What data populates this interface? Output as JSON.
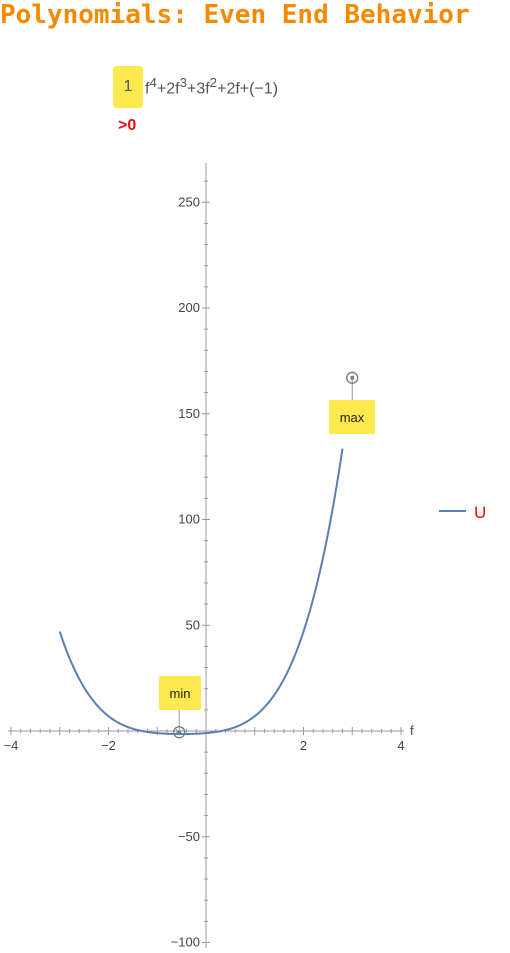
{
  "page_title": "Polynomials: Even End Behavior",
  "polynomial": {
    "leading_coefficient": "1",
    "rest_html": "f<sup>4</sup>+2f<sup>3</sup>+3f<sup>2</sup>+2f+(−1)",
    "sign_label": ">0"
  },
  "colors": {
    "title": "#f58a00",
    "curve": "#5b7fb0",
    "highlight": "#fbe94e",
    "sign": "#e01010"
  },
  "chart_data": {
    "type": "line",
    "xlabel": "f",
    "ylabel": "",
    "xlim": [
      -4,
      4
    ],
    "ylim": [
      -100,
      270
    ],
    "x_ticks": [
      -4,
      -2,
      2,
      4
    ],
    "x_tick_labels": [
      "−4",
      "−2",
      "2",
      "4"
    ],
    "y_ticks": [
      -100,
      -50,
      50,
      100,
      150,
      200,
      250
    ],
    "y_tick_labels": [
      "−100",
      "−50",
      "50",
      "100",
      "150",
      "200",
      "250"
    ],
    "series": [
      {
        "name": "U",
        "coefficients": [
          1,
          2,
          3,
          2,
          -1
        ],
        "domain": [
          -3,
          2.8
        ]
      }
    ],
    "annotations": [
      {
        "label": "min",
        "x": -0.55,
        "y": -0.6
      },
      {
        "label": "max",
        "x": 3,
        "y": 167
      }
    ],
    "legend_position": "right",
    "grid": false
  }
}
